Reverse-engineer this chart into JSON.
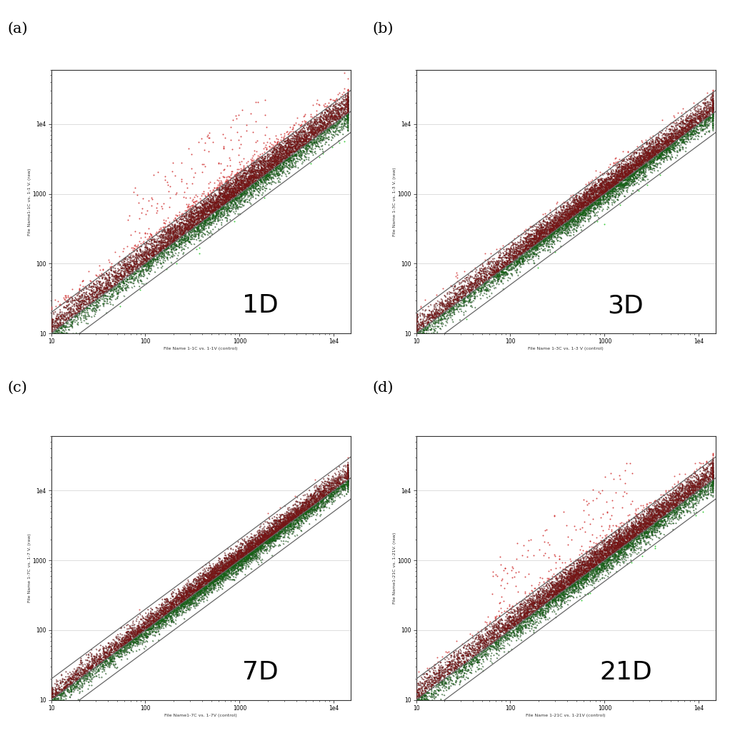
{
  "panels": [
    {
      "label": "(a)",
      "day_label": "1D",
      "xlabel": "File Name 1-1C vs. 1-1V (control)",
      "ylabel": "File Name1-1C vs. 1-1 V. (raw)",
      "seed": 42,
      "spread": 0.13,
      "asymmetry": 0.08
    },
    {
      "label": "(b)",
      "day_label": "3D",
      "xlabel": "File Name 1-3C vs. 1-3 V (control)",
      "ylabel": "File Name 1-3C vs. 1-3 V. (raw)",
      "seed": 123,
      "spread": 0.11,
      "asymmetry": 0.05
    },
    {
      "label": "(c)",
      "day_label": "7D",
      "xlabel": "File Name1-7C vs. 1-7V (control)",
      "ylabel": "File Name 1-7C vs. 1-7 V. (raw)",
      "seed": 7,
      "spread": 0.09,
      "asymmetry": 0.03
    },
    {
      "label": "(d)",
      "day_label": "21D",
      "xlabel": "File Name 1-21C vs. 1-21V (control)",
      "ylabel": "File Name1-21C vs. 1-21V. (raw)",
      "seed": 21,
      "spread": 0.12,
      "asymmetry": 0.06
    }
  ],
  "n_points": 9000,
  "background_color": "#ffffff",
  "diagonal_color": "#777777",
  "fold_factor": 2.0,
  "point_size": 2.0,
  "xmin": 10,
  "xmax": 15000,
  "ymin": 10,
  "ymax": 60000
}
